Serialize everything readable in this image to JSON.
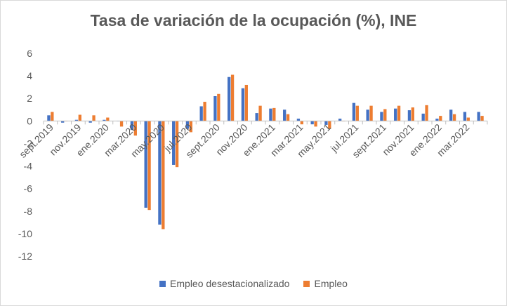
{
  "chart_data": {
    "type": "bar",
    "title": "Tasa de variación de la ocupación (%), INE",
    "xlabel": "",
    "ylabel": "",
    "ylim": [
      -12,
      6
    ],
    "yticks": [
      6,
      4,
      2,
      0,
      -2,
      -4,
      -6,
      -8,
      -10,
      -12
    ],
    "grid": false,
    "legend_position": "bottom",
    "categories": [
      "sept.2019",
      "oct.2019",
      "nov.2019",
      "dic.2019",
      "ene.2020",
      "feb.2020",
      "mar.2020",
      "abr.2020",
      "may.2020",
      "jun.2020",
      "jul.2020",
      "ago.2020",
      "sept.2020",
      "oct.2020",
      "nov.2020",
      "dic.2020",
      "ene.2021",
      "feb.2021",
      "mar.2021",
      "abr.2021",
      "may.2021",
      "jun.2021",
      "jul.2021",
      "ago.2021",
      "sept.2021",
      "oct.2021",
      "nov.2021",
      "dic.2021",
      "ene.2022",
      "feb.2022",
      "mar.2022",
      "abr.2022"
    ],
    "tick_labels": [
      "sept.2019",
      "",
      "nov.2019",
      "",
      "ene.2020",
      "",
      "mar.2020",
      "",
      "may.2020",
      "",
      "jul.2020",
      "",
      "sept.2020",
      "",
      "nov.2020",
      "",
      "ene.2021",
      "",
      "mar.2021",
      "",
      "may.2021",
      "",
      "jul.2021",
      "",
      "sept.2021",
      "",
      "nov.2021",
      "",
      "ene.2022",
      "",
      "mar.2022",
      ""
    ],
    "series": [
      {
        "name": "Empleo desestacionalizado",
        "color": "#4472c4",
        "values": [
          0.5,
          -0.15,
          0.1,
          -0.15,
          0.1,
          0.0,
          -0.8,
          -7.7,
          -9.2,
          -3.9,
          -0.7,
          1.3,
          2.2,
          3.9,
          2.9,
          0.7,
          1.1,
          1.0,
          0.2,
          -0.3,
          -0.35,
          0.2,
          1.6,
          1.0,
          0.8,
          1.1,
          0.95,
          0.65,
          0.2,
          1.0,
          0.8,
          0.8
        ]
      },
      {
        "name": "Empleo",
        "color": "#ed7d31",
        "values": [
          0.8,
          0.0,
          0.55,
          0.5,
          0.3,
          -0.5,
          -1.3,
          -7.9,
          -9.6,
          -4.1,
          -1.0,
          1.7,
          2.4,
          4.1,
          3.2,
          1.35,
          1.15,
          0.6,
          -0.3,
          -0.5,
          -0.7,
          0.0,
          1.35,
          1.35,
          1.05,
          1.35,
          1.2,
          1.4,
          0.45,
          0.6,
          0.3,
          0.45
        ]
      }
    ]
  }
}
